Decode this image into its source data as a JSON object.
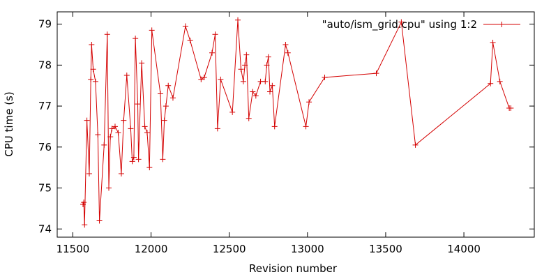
{
  "chart_data": {
    "type": "line",
    "title": "",
    "xlabel": "Revision number",
    "ylabel": "CPU time (s)",
    "xlim": [
      11400,
      14450
    ],
    "ylim": [
      73.8,
      79.3
    ],
    "xticks": [
      11500,
      12000,
      12500,
      13000,
      13500,
      14000
    ],
    "yticks": [
      74,
      75,
      76,
      77,
      78,
      79
    ],
    "grid": false,
    "legend_position": "top-right",
    "series": [
      {
        "name": "\"auto/ism_grid.cpu\" using 1:2",
        "color": "#d40000",
        "marker": "plus",
        "x": [
          11565,
          11570,
          11575,
          11590,
          11605,
          11615,
          11620,
          11630,
          11645,
          11660,
          11670,
          11700,
          11720,
          11730,
          11740,
          11750,
          11770,
          11790,
          11810,
          11825,
          11845,
          11870,
          11880,
          11890,
          11900,
          11915,
          11920,
          11940,
          11960,
          11975,
          11990,
          12005,
          12060,
          12075,
          12085,
          12095,
          12110,
          12140,
          12220,
          12250,
          12320,
          12340,
          12390,
          12410,
          12425,
          12445,
          12520,
          12555,
          12575,
          12590,
          12600,
          12610,
          12625,
          12650,
          12670,
          12700,
          12730,
          12740,
          12750,
          12760,
          12775,
          12790,
          12860,
          12875,
          12990,
          13010,
          13110,
          13440,
          13600,
          13690,
          14170,
          14185,
          14230,
          14290,
          14300
        ],
        "values": [
          74.6,
          74.65,
          74.1,
          76.65,
          75.35,
          77.65,
          78.5,
          77.9,
          77.6,
          76.3,
          74.2,
          76.05,
          78.75,
          75.0,
          76.25,
          76.45,
          76.5,
          76.35,
          75.35,
          76.65,
          77.75,
          76.45,
          75.65,
          75.75,
          78.65,
          77.05,
          75.7,
          78.05,
          76.5,
          76.35,
          75.5,
          78.85,
          77.3,
          75.7,
          76.65,
          77.0,
          77.5,
          77.2,
          78.95,
          78.6,
          77.65,
          77.7,
          78.3,
          78.75,
          76.45,
          77.65,
          76.85,
          79.1,
          77.9,
          77.6,
          78.0,
          78.25,
          76.7,
          77.35,
          77.25,
          77.6,
          77.6,
          78.0,
          78.2,
          77.35,
          77.5,
          76.5,
          78.5,
          78.3,
          76.5,
          77.1,
          77.7,
          77.8,
          79.05,
          76.05,
          77.55,
          78.55,
          77.6,
          76.95,
          76.95
        ]
      }
    ]
  }
}
